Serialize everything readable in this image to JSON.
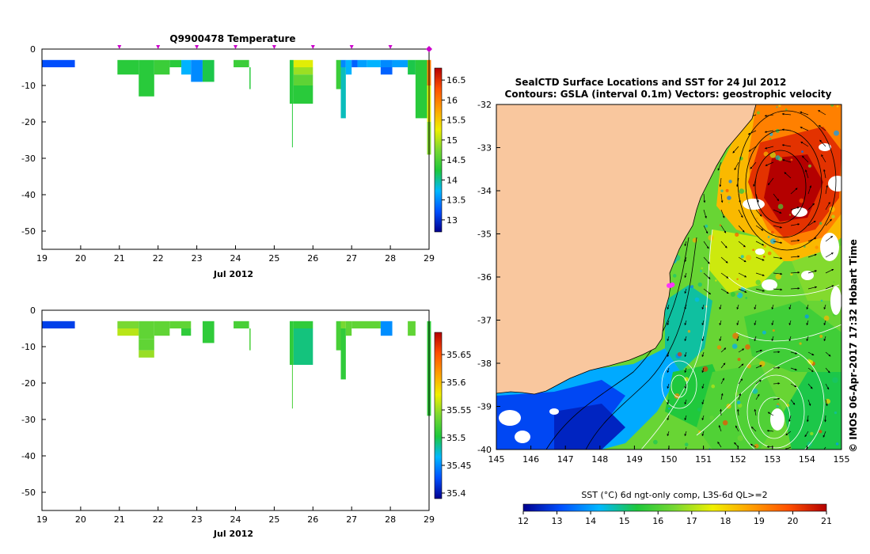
{
  "colors": {
    "land": "#f9c79e",
    "axis": "#000000",
    "profile_marker": "#cc00cc",
    "sealctd_location": "#ff33ff"
  },
  "chart_data": [
    {
      "type": "heatmap",
      "name": "temperature_timeseries",
      "title": "Q9900478  Temperature",
      "xlabel": "Jul 2012",
      "ylabel": "",
      "xlim": [
        19,
        29
      ],
      "ylim": [
        -55,
        0
      ],
      "xticks": [
        "19",
        "20",
        "21",
        "22",
        "23",
        "24",
        "25",
        "26",
        "27",
        "28",
        "29"
      ],
      "yticks": [
        "0",
        "-10",
        "-20",
        "-30",
        "-40",
        "-50"
      ],
      "profile_days": [
        21,
        22,
        23,
        24,
        25,
        26,
        27,
        28,
        29
      ],
      "colorbar": {
        "min": 12.7,
        "max": 16.8,
        "ticks": [
          "16.5",
          "16",
          "15.5",
          "15",
          "14.5",
          "14",
          "13.5",
          "13"
        ]
      },
      "cells": [
        {
          "x0": 19.0,
          "x1": 19.85,
          "d0": 3,
          "d1": 5,
          "v": 13.2
        },
        {
          "x0": 20.95,
          "x1": 21.5,
          "d0": 3,
          "d1": 7,
          "v": 14.3
        },
        {
          "x0": 21.5,
          "x1": 21.9,
          "d0": 3,
          "d1": 13,
          "v": 14.3
        },
        {
          "x0": 21.9,
          "x1": 22.3,
          "d0": 3,
          "d1": 7,
          "v": 14.4
        },
        {
          "x0": 22.3,
          "x1": 22.6,
          "d0": 3,
          "d1": 5,
          "v": 14.3
        },
        {
          "x0": 22.6,
          "x1": 22.85,
          "d0": 3,
          "d1": 7,
          "v": 13.7
        },
        {
          "x0": 22.85,
          "x1": 23.15,
          "d0": 3,
          "d1": 9,
          "v": 13.5
        },
        {
          "x0": 23.15,
          "x1": 23.45,
          "d0": 3,
          "d1": 9,
          "v": 14.2
        },
        {
          "x0": 23.95,
          "x1": 24.35,
          "d0": 3,
          "d1": 5,
          "v": 14.4
        },
        {
          "x0": 24.36,
          "x1": 24.39,
          "d0": 5,
          "d1": 11,
          "v": 14.3
        },
        {
          "x0": 25.4,
          "x1": 25.5,
          "d0": 3,
          "d1": 15,
          "v": 14.3
        },
        {
          "x0": 25.46,
          "x1": 25.48,
          "d0": 15,
          "d1": 27,
          "v": 14.3
        },
        {
          "x0": 25.5,
          "x1": 26.0,
          "d0": 3,
          "d1": 5,
          "v": 15.2
        },
        {
          "x0": 25.5,
          "x1": 26.0,
          "d0": 5,
          "d1": 7,
          "v": 14.9
        },
        {
          "x0": 25.5,
          "x1": 26.0,
          "d0": 7,
          "d1": 10,
          "v": 14.6
        },
        {
          "x0": 25.5,
          "x1": 26.0,
          "d0": 10,
          "d1": 15,
          "v": 14.3
        },
        {
          "x0": 26.6,
          "x1": 26.72,
          "d0": 3,
          "d1": 11,
          "v": 14.4
        },
        {
          "x0": 26.72,
          "x1": 26.85,
          "d0": 3,
          "d1": 5,
          "v": 13.5
        },
        {
          "x0": 26.72,
          "x1": 26.85,
          "d0": 5,
          "d1": 19,
          "v": 13.9
        },
        {
          "x0": 26.85,
          "x1": 27.0,
          "d0": 3,
          "d1": 7,
          "v": 13.7
        },
        {
          "x0": 27.0,
          "x1": 27.15,
          "d0": 3,
          "d1": 5,
          "v": 13.3
        },
        {
          "x0": 27.15,
          "x1": 27.4,
          "d0": 3,
          "d1": 5,
          "v": 13.6
        },
        {
          "x0": 27.4,
          "x1": 27.75,
          "d0": 3,
          "d1": 5,
          "v": 13.7
        },
        {
          "x0": 27.75,
          "x1": 28.05,
          "d0": 3,
          "d1": 5,
          "v": 13.5
        },
        {
          "x0": 27.75,
          "x1": 28.05,
          "d0": 5,
          "d1": 7,
          "v": 13.3
        },
        {
          "x0": 28.05,
          "x1": 28.45,
          "d0": 3,
          "d1": 5,
          "v": 13.6
        },
        {
          "x0": 28.45,
          "x1": 28.65,
          "d0": 3,
          "d1": 7,
          "v": 14.2
        },
        {
          "x0": 28.65,
          "x1": 28.95,
          "d0": 3,
          "d1": 19,
          "v": 14.3
        },
        {
          "x0": 28.95,
          "x1": 29.05,
          "d0": 3,
          "d1": 10,
          "v": 16.0
        },
        {
          "x0": 28.95,
          "x1": 29.05,
          "d0": 10,
          "d1": 20,
          "v": 15.2
        },
        {
          "x0": 28.95,
          "x1": 29.05,
          "d0": 20,
          "d1": 29,
          "v": 14.8
        }
      ]
    },
    {
      "type": "heatmap",
      "name": "salinity_timeseries",
      "title": "",
      "xlabel": "Jul 2012",
      "ylabel": "",
      "xlim": [
        19,
        29
      ],
      "ylim": [
        -55,
        0
      ],
      "xticks": [
        "19",
        "20",
        "21",
        "22",
        "23",
        "24",
        "25",
        "26",
        "27",
        "28",
        "29"
      ],
      "yticks": [
        "0",
        "-10",
        "-20",
        "-30",
        "-40",
        "-50"
      ],
      "colorbar": {
        "min": 35.39,
        "max": 35.69,
        "ticks": [
          "35.65",
          "35.6",
          "35.55",
          "35.5",
          "35.45",
          "35.4"
        ]
      },
      "cells": [
        {
          "x0": 19.0,
          "x1": 19.85,
          "d0": 3,
          "d1": 5,
          "v": 35.42
        },
        {
          "x0": 20.95,
          "x1": 21.5,
          "d0": 3,
          "d1": 5,
          "v": 35.54
        },
        {
          "x0": 20.95,
          "x1": 21.5,
          "d0": 5,
          "d1": 7,
          "v": 35.56
        },
        {
          "x0": 21.5,
          "x1": 21.9,
          "d0": 3,
          "d1": 8,
          "v": 35.53
        },
        {
          "x0": 21.5,
          "x1": 21.9,
          "d0": 8,
          "d1": 11,
          "v": 35.53
        },
        {
          "x0": 21.5,
          "x1": 21.9,
          "d0": 11,
          "d1": 13,
          "v": 35.55
        },
        {
          "x0": 21.9,
          "x1": 22.3,
          "d0": 3,
          "d1": 7,
          "v": 35.53
        },
        {
          "x0": 22.3,
          "x1": 22.85,
          "d0": 3,
          "d1": 5,
          "v": 35.53
        },
        {
          "x0": 22.6,
          "x1": 22.85,
          "d0": 5,
          "d1": 7,
          "v": 35.51
        },
        {
          "x0": 23.15,
          "x1": 23.45,
          "d0": 3,
          "d1": 9,
          "v": 35.51
        },
        {
          "x0": 23.95,
          "x1": 24.35,
          "d0": 3,
          "d1": 5,
          "v": 35.52
        },
        {
          "x0": 24.36,
          "x1": 24.39,
          "d0": 5,
          "d1": 11,
          "v": 35.52
        },
        {
          "x0": 25.4,
          "x1": 25.5,
          "d0": 3,
          "d1": 15,
          "v": 35.51
        },
        {
          "x0": 25.46,
          "x1": 25.48,
          "d0": 15,
          "d1": 27,
          "v": 35.52
        },
        {
          "x0": 25.5,
          "x1": 26.0,
          "d0": 3,
          "d1": 5,
          "v": 35.51
        },
        {
          "x0": 25.5,
          "x1": 26.0,
          "d0": 5,
          "d1": 15,
          "v": 35.49
        },
        {
          "x0": 26.6,
          "x1": 26.72,
          "d0": 3,
          "d1": 11,
          "v": 35.52
        },
        {
          "x0": 26.72,
          "x1": 26.85,
          "d0": 3,
          "d1": 5,
          "v": 35.54
        },
        {
          "x0": 26.72,
          "x1": 26.85,
          "d0": 5,
          "d1": 19,
          "v": 35.51
        },
        {
          "x0": 26.85,
          "x1": 27.0,
          "d0": 3,
          "d1": 7,
          "v": 35.53
        },
        {
          "x0": 27.0,
          "x1": 27.75,
          "d0": 3,
          "d1": 5,
          "v": 35.53
        },
        {
          "x0": 27.75,
          "x1": 28.05,
          "d0": 3,
          "d1": 7,
          "v": 35.45
        },
        {
          "x0": 28.45,
          "x1": 28.65,
          "d0": 3,
          "d1": 7,
          "v": 35.53
        },
        {
          "x0": 28.95,
          "x1": 29.05,
          "d0": 3,
          "d1": 29,
          "v": 35.51
        }
      ]
    },
    {
      "type": "heatmap",
      "name": "sst_map",
      "title": "SealCTD Surface Locations and SST for 24 Jul 2012",
      "subtitle": "Contours: GSLA (interval 0.1m) Vectors: geostrophic velocity",
      "xlabel": "",
      "ylabel": "",
      "xlim": [
        145,
        155
      ],
      "ylim": [
        -40,
        -32
      ],
      "xticks": [
        "145",
        "146",
        "147",
        "148",
        "149",
        "150",
        "151",
        "152",
        "153",
        "154",
        "155"
      ],
      "yticks": [
        "-32",
        "-33",
        "-34",
        "-35",
        "-36",
        "-37",
        "-38",
        "-39",
        "-40"
      ],
      "colorbar": {
        "label": "SST (°C) 6d ngt-only comp, L3S-6d QL>=2",
        "min": 12,
        "max": 21,
        "ticks": [
          "12",
          "13",
          "14",
          "15",
          "16",
          "17",
          "18",
          "19",
          "20",
          "21"
        ]
      },
      "sealctd_locations": [
        {
          "lon": 150.0,
          "lat": -36.2
        },
        {
          "lon": 150.05,
          "lat": -36.2
        },
        {
          "lon": 150.1,
          "lat": -36.18
        }
      ],
      "side_text": "© IMOS 06-Apr-2017 17:32 Hobart Time"
    }
  ]
}
